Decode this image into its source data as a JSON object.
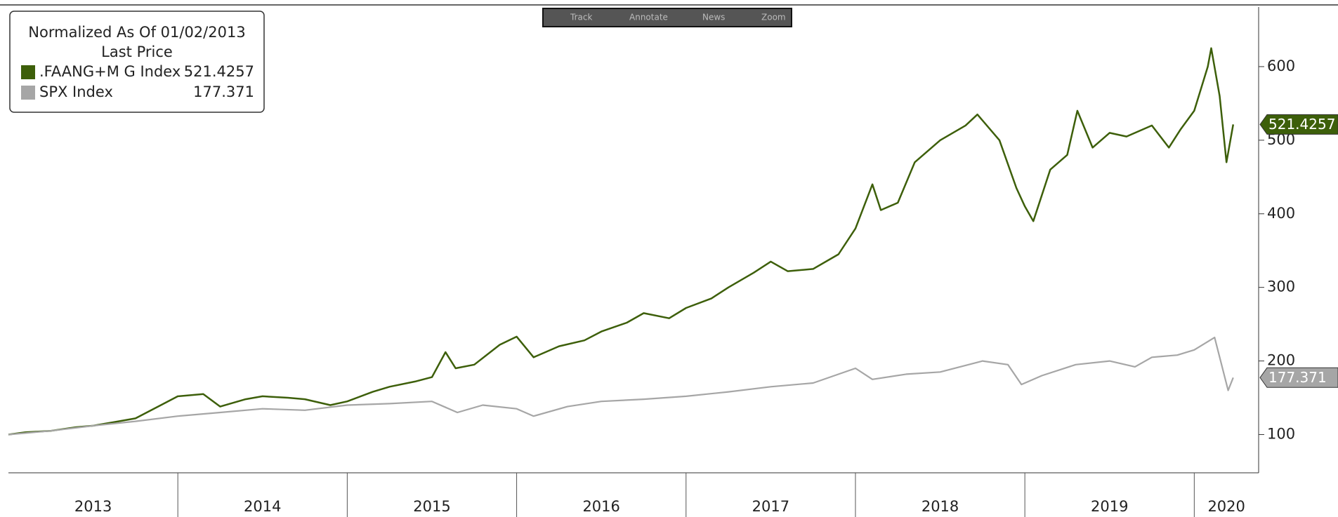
{
  "toolbar": [
    "Track",
    "Annotate",
    "News",
    "Zoom"
  ],
  "chart_data": {
    "type": "line",
    "legend_title": "Normalized As Of 01/02/2013",
    "legend_subtitle": "Last Price",
    "xlim": [
      2013,
      2020.38
    ],
    "xticks": [
      2013,
      2014,
      2015,
      2016,
      2017,
      2018,
      2019,
      2020
    ],
    "ylim": [
      48,
      681
    ],
    "yticks": [
      100,
      200,
      300,
      400,
      500,
      600
    ],
    "series": [
      {
        "name": ".FAANG+M G Index",
        "color": "#3d5f0a",
        "x": [
          2013,
          2013.1,
          2013.25,
          2013.4,
          2013.5,
          2013.65,
          2013.75,
          2013.9,
          2014,
          2014.15,
          2014.25,
          2014.4,
          2014.5,
          2014.65,
          2014.75,
          2014.9,
          2015,
          2015.15,
          2015.25,
          2015.4,
          2015.5,
          2015.58,
          2015.64,
          2015.75,
          2015.9,
          2016,
          2016.1,
          2016.25,
          2016.4,
          2016.5,
          2016.65,
          2016.75,
          2016.9,
          2017,
          2017.15,
          2017.25,
          2017.4,
          2017.5,
          2017.6,
          2017.75,
          2017.9,
          2018,
          2018.1,
          2018.15,
          2018.25,
          2018.35,
          2018.5,
          2018.65,
          2018.72,
          2018.85,
          2018.95,
          2019,
          2019.05,
          2019.15,
          2019.25,
          2019.31,
          2019.4,
          2019.5,
          2019.6,
          2019.75,
          2019.85,
          2019.92,
          2020,
          2020.08,
          2020.1,
          2020.15,
          2020.19,
          2020.23
        ],
        "values": [
          100,
          103,
          105,
          110,
          112,
          118,
          122,
          140,
          152,
          155,
          138,
          148,
          152,
          150,
          148,
          140,
          145,
          158,
          165,
          172,
          178,
          212,
          190,
          195,
          222,
          233,
          205,
          220,
          228,
          240,
          252,
          265,
          258,
          272,
          285,
          300,
          320,
          335,
          322,
          325,
          345,
          380,
          440,
          405,
          415,
          470,
          500,
          520,
          535,
          500,
          435,
          410,
          390,
          460,
          480,
          540,
          490,
          510,
          505,
          520,
          490,
          515,
          540,
          600,
          625,
          560,
          470,
          521.4257
        ]
      },
      {
        "name": "SPX Index",
        "color": "#a6a6a6",
        "x": [
          2013,
          2013.25,
          2013.5,
          2013.75,
          2014,
          2014.25,
          2014.5,
          2014.75,
          2015,
          2015.25,
          2015.5,
          2015.65,
          2015.8,
          2016,
          2016.1,
          2016.3,
          2016.5,
          2016.75,
          2017,
          2017.25,
          2017.5,
          2017.75,
          2018,
          2018.1,
          2018.3,
          2018.5,
          2018.75,
          2018.9,
          2018.98,
          2019.1,
          2019.3,
          2019.5,
          2019.65,
          2019.75,
          2019.9,
          2020,
          2020.12,
          2020.2,
          2020.23
        ],
        "values": [
          100,
          105,
          112,
          118,
          125,
          130,
          135,
          133,
          140,
          142,
          145,
          130,
          140,
          135,
          125,
          138,
          145,
          148,
          152,
          158,
          165,
          170,
          190,
          175,
          182,
          185,
          200,
          195,
          168,
          180,
          195,
          200,
          192,
          205,
          208,
          215,
          232,
          160,
          177.371
        ]
      }
    ]
  }
}
